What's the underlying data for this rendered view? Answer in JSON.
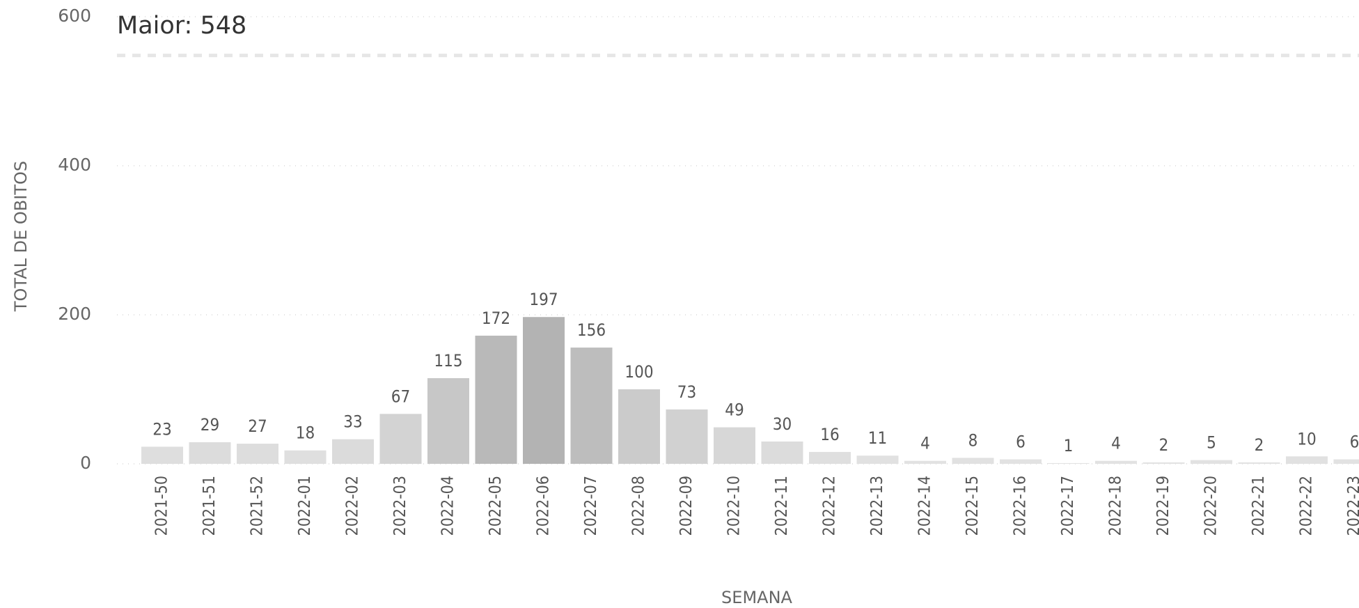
{
  "chart_data": {
    "type": "bar",
    "x_label": "SEMANA",
    "y_label": "TOTAL DE OBITOS",
    "categories": [
      "2021-50",
      "2021-51",
      "2021-52",
      "2022-01",
      "2022-02",
      "2022-03",
      "2022-04",
      "2022-05",
      "2022-06",
      "2022-07",
      "2022-08",
      "2022-09",
      "2022-10",
      "2022-11",
      "2022-12",
      "2022-13",
      "2022-14",
      "2022-15",
      "2022-16",
      "2022-17",
      "2022-18",
      "2022-19",
      "2022-20",
      "2022-21",
      "2022-22",
      "2022-23"
    ],
    "values": [
      23,
      29,
      27,
      18,
      33,
      67,
      115,
      172,
      197,
      156,
      100,
      73,
      49,
      30,
      16,
      11,
      4,
      8,
      6,
      1,
      4,
      2,
      5,
      2,
      10,
      6
    ],
    "color_min": "#e3e3e3",
    "color_max": "#b3b3b3",
    "ylim": [
      0,
      600
    ],
    "yticks": [
      0,
      200,
      400,
      600
    ],
    "grid": true,
    "reference_line": {
      "label": "Maior: 548",
      "value": 548,
      "color": "#e6e6e6"
    }
  }
}
